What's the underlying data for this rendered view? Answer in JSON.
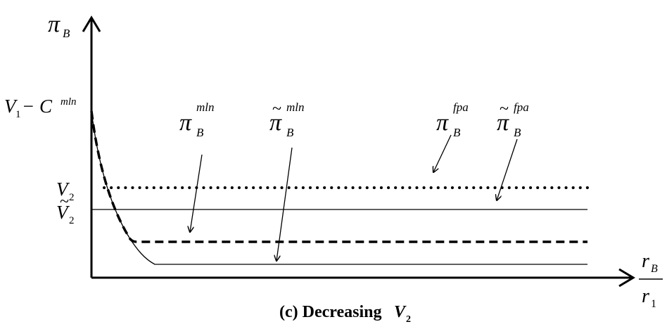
{
  "axes": {
    "y_symbol": "π",
    "y_sub": "B",
    "x_num_symbol": "r",
    "x_num_sub": "B",
    "x_den_symbol": "r",
    "x_den_sub": "1"
  },
  "y_ticks": {
    "top": {
      "v": "V",
      "sub": "1",
      "minus": " − C",
      "sup": "mln"
    },
    "v2": {
      "v": "V",
      "sub": "2"
    },
    "v2_tilde": {
      "tilde": "~",
      "v": "V",
      "sub": "2"
    }
  },
  "curve_labels": [
    {
      "tilde": "",
      "symbol": "π",
      "sub": "B",
      "sup": "mln"
    },
    {
      "tilde": "~",
      "symbol": "π",
      "sub": "B",
      "sup": "mln"
    },
    {
      "tilde": "",
      "symbol": "π",
      "sub": "B",
      "sup": "fpa"
    },
    {
      "tilde": "~",
      "symbol": "π",
      "sub": "B",
      "sup": "fpa"
    }
  ],
  "caption": {
    "prefix": "(c)  Decreasing ",
    "v": "V",
    "sub": "2"
  }
}
